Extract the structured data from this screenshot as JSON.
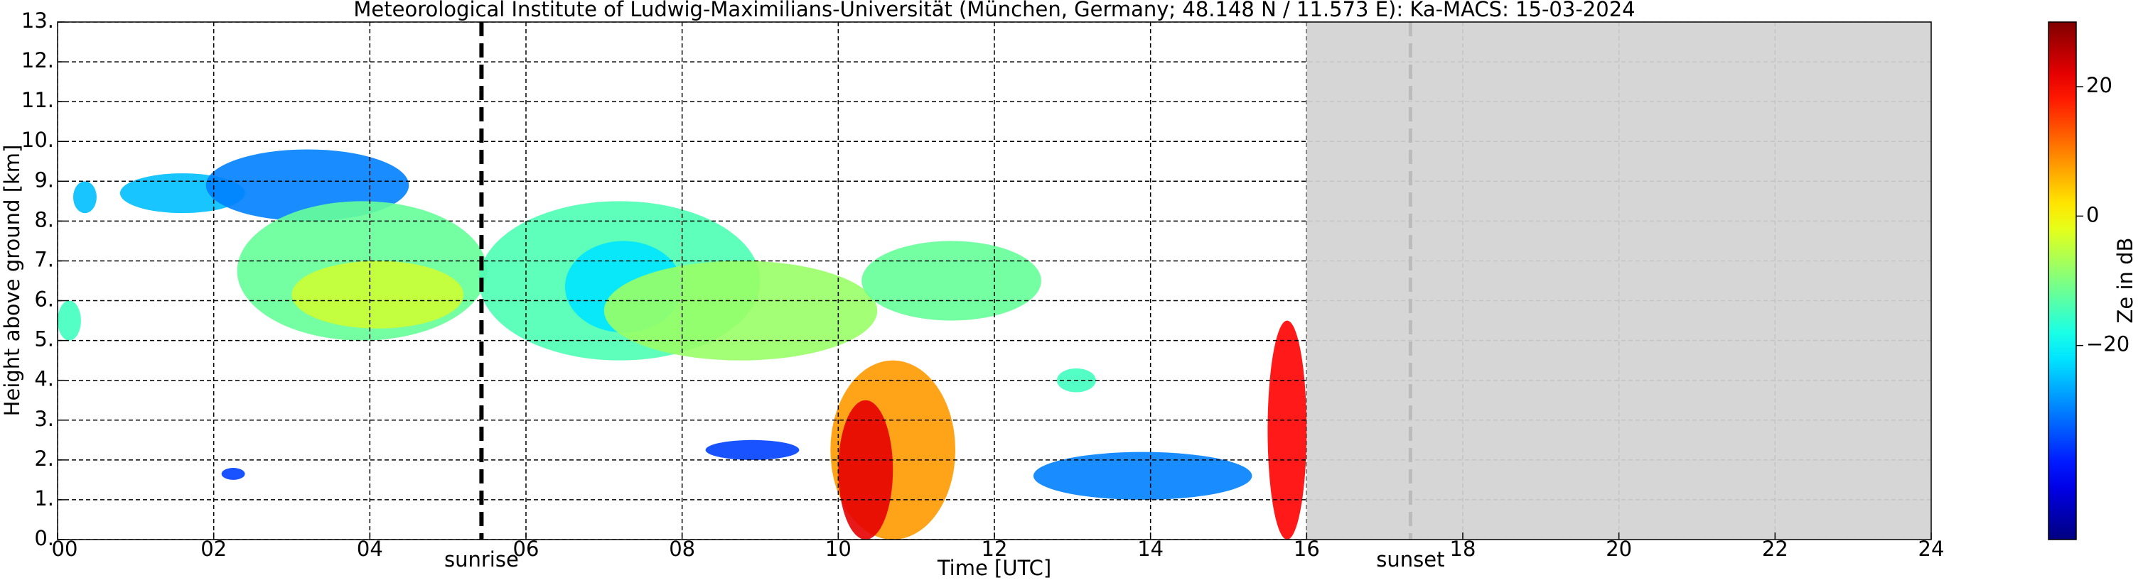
{
  "chart_data": {
    "type": "heatmap",
    "title": "Meteorological Institute of Ludwig-Maximilians-Universität (München, Germany; 48.148 N / 11.573 E):    Ka-MACS: 15-03-2024",
    "x_label": "Time [UTC]",
    "y_label": "Height above ground [km]",
    "colorbar_label": "Ze in dB",
    "colormap": "jet",
    "grid": true,
    "xlim": [
      0,
      24
    ],
    "xticks": [
      {
        "value": 0,
        "label": "00"
      },
      {
        "value": 2,
        "label": "02"
      },
      {
        "value": 4,
        "label": "04"
      },
      {
        "value": 6,
        "label": "06"
      },
      {
        "value": 8,
        "label": "08"
      },
      10,
      12,
      14,
      16,
      18,
      20,
      22,
      24
    ],
    "ylim": [
      0,
      13
    ],
    "yticks": [
      {
        "value": 0,
        "label": "0."
      },
      {
        "value": 1,
        "label": "1."
      },
      {
        "value": 2,
        "label": "2."
      },
      {
        "value": 3,
        "label": "3."
      },
      {
        "value": 4,
        "label": "4."
      },
      {
        "value": 5,
        "label": "5."
      },
      {
        "value": 6,
        "label": "6."
      },
      {
        "value": 7,
        "label": "7."
      },
      {
        "value": 8,
        "label": "8."
      },
      {
        "value": 9,
        "label": "9."
      },
      {
        "value": 10,
        "label": "10."
      },
      {
        "value": 11,
        "label": "11."
      },
      {
        "value": 12,
        "label": "12."
      },
      {
        "value": 13,
        "label": "13."
      }
    ],
    "clim": [
      -50,
      30
    ],
    "cticks": [
      {
        "value": -20,
        "label": "−20"
      },
      0,
      20
    ],
    "sunrise": {
      "label": "sunrise",
      "time": 5.43
    },
    "sunset": {
      "label": "sunset",
      "time": 17.33
    },
    "unavailable": [
      16,
      24
    ],
    "echoes": [
      {
        "t": [
          0,
          0.3
        ],
        "h": [
          5,
          6
        ],
        "ze": -15
      },
      {
        "t": [
          0.2,
          0.5
        ],
        "h": [
          8.2,
          9
        ],
        "ze": -25
      },
      {
        "t": [
          0.8,
          2.4
        ],
        "h": [
          8.2,
          9.2
        ],
        "ze": -25
      },
      {
        "t": [
          1.9,
          4.5
        ],
        "h": [
          8,
          9.8
        ],
        "ze": -30
      },
      {
        "t": [
          2.3,
          5.5
        ],
        "h": [
          5,
          8.5
        ],
        "ze": -12
      },
      {
        "t": [
          3,
          5.2
        ],
        "h": [
          5.3,
          7
        ],
        "ze": -4
      },
      {
        "t": [
          5.4,
          9
        ],
        "h": [
          4.5,
          8.5
        ],
        "ze": -14
      },
      {
        "t": [
          6.5,
          8
        ],
        "h": [
          5.2,
          7.5
        ],
        "ze": -22
      },
      {
        "t": [
          7,
          10.5
        ],
        "h": [
          4.5,
          7
        ],
        "ze": -8
      },
      {
        "t": [
          10.3,
          12.6
        ],
        "h": [
          5.5,
          7.5
        ],
        "ze": -12
      },
      {
        "t": [
          9.9,
          11.5
        ],
        "h": [
          0,
          4.5
        ],
        "ze": 8
      },
      {
        "t": [
          10,
          10.7
        ],
        "h": [
          0,
          3.5
        ],
        "ze": 22
      },
      {
        "t": [
          8.3,
          9.5
        ],
        "h": [
          2,
          2.5
        ],
        "ze": -35
      },
      {
        "t": [
          12.5,
          15.3
        ],
        "h": [
          1,
          2.2
        ],
        "ze": -30
      },
      {
        "t": [
          2.1,
          2.4
        ],
        "h": [
          1.5,
          1.8
        ],
        "ze": -35
      },
      {
        "t": [
          12.8,
          13.3
        ],
        "h": [
          3.7,
          4.3
        ],
        "ze": -15
      },
      {
        "t": [
          15.5,
          16
        ],
        "h": [
          0,
          5.5
        ],
        "ze": 20
      }
    ]
  }
}
